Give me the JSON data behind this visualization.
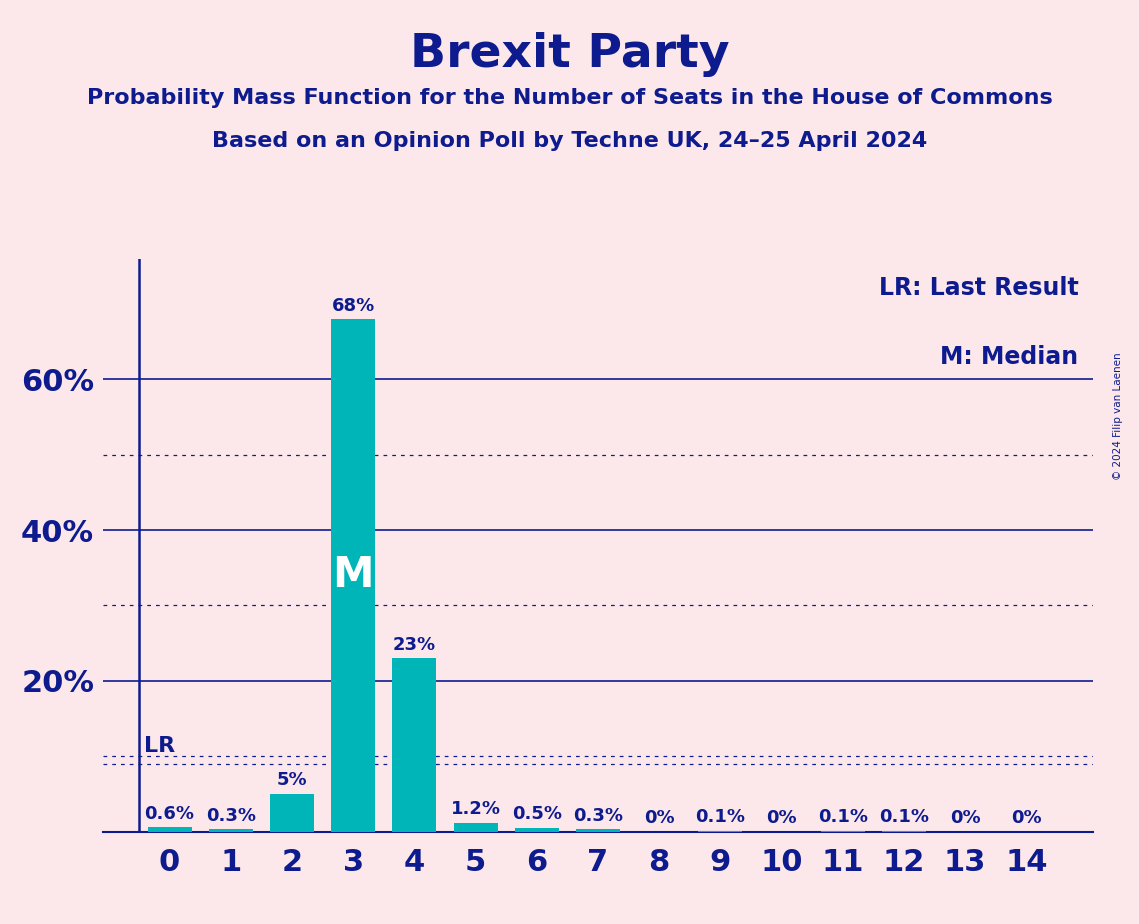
{
  "title": "Brexit Party",
  "subtitle1": "Probability Mass Function for the Number of Seats in the House of Commons",
  "subtitle2": "Based on an Opinion Poll by Techne UK, 24–25 April 2024",
  "copyright": "© 2024 Filip van Laenen",
  "categories": [
    0,
    1,
    2,
    3,
    4,
    5,
    6,
    7,
    8,
    9,
    10,
    11,
    12,
    13,
    14
  ],
  "values": [
    0.6,
    0.3,
    5.0,
    68.0,
    23.0,
    1.2,
    0.5,
    0.3,
    0.0,
    0.1,
    0.0,
    0.1,
    0.1,
    0.0,
    0.0
  ],
  "bar_color": "#00b5b8",
  "background_color": "#fce8ea",
  "title_color": "#0d1b8e",
  "axis_color": "#0d1b8e",
  "median_label": "M",
  "median_index": 3,
  "lr_value": 9.0,
  "lr_label": "LR",
  "yticks_solid": [
    0,
    20,
    40,
    60
  ],
  "yticks_dotted": [
    10,
    30,
    50
  ],
  "ylim": [
    0,
    76
  ],
  "legend_lr": "LR: Last Result",
  "legend_m": "M: Median"
}
